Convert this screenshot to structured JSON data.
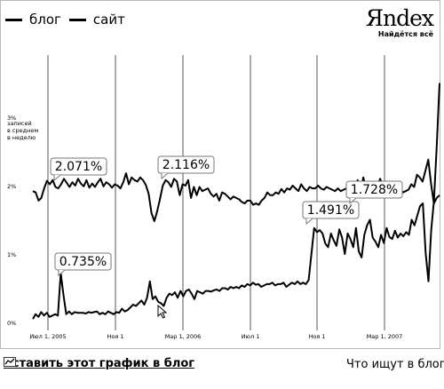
{
  "legend": [
    {
      "name": "блог"
    },
    {
      "name": "сайт"
    }
  ],
  "brand": {
    "logo": "Яndex",
    "tagline": "Найдётся всё"
  },
  "footer": {
    "embed_link": "Вставить этот график в блог",
    "right_text": "Что ищут в блога"
  },
  "chart_data": {
    "type": "line",
    "ylabel": "3% записей в среднем в неделю",
    "y_ticks": [
      "3%",
      "2%",
      "1%",
      "0%"
    ],
    "x_ticks": [
      "Июл 1, 2005",
      "Ноя 1",
      "Мар 1, 2006",
      "Июл 1",
      "Ноя 1",
      "Мар 1, 2007"
    ],
    "x_range": [
      "2005-05",
      "2007-09"
    ],
    "ylim": [
      0,
      3
    ],
    "grid": "vertical lines at x ticks",
    "callouts": [
      "2.071%",
      "2.116%",
      "0.735%",
      "1.491%",
      "1.728%"
    ],
    "series": [
      {
        "name": "блог",
        "values": [
          1.92,
          1.9,
          1.78,
          1.82,
          1.96,
          2.07,
          2.02,
          2.08,
          1.98,
          1.96,
          2.02,
          2.1,
          2.04,
          1.98,
          2.05,
          2.0,
          2.1,
          2.03,
          1.99,
          2.08,
          1.97,
          2.03,
          1.98,
          2.05,
          2.1,
          1.99,
          2.05,
          2.02,
          1.97,
          2.02,
          2.0,
          1.96,
          2.05,
          2.18,
          2.02,
          2.12,
          2.08,
          2.06,
          2.12,
          2.08,
          2.01,
          1.88,
          1.6,
          1.48,
          1.62,
          1.8,
          2.0,
          2.08,
          2.05,
          1.98,
          2.1,
          2.06,
          1.86,
          2.02,
          2.0,
          2.08,
          1.82,
          1.98,
          1.86,
          1.98,
          1.92,
          1.94,
          1.96,
          1.88,
          1.84,
          1.88,
          1.78,
          1.9,
          1.88,
          1.84,
          1.8,
          1.84,
          1.82,
          1.8,
          1.76,
          1.74,
          1.78,
          1.78,
          1.72,
          1.74,
          1.72,
          1.78,
          1.82,
          1.9,
          1.86,
          1.86,
          1.9,
          1.88,
          1.95,
          1.9,
          1.96,
          1.94,
          2.0,
          1.96,
          1.92,
          2.02,
          1.96,
          1.92,
          1.98,
          1.96,
          1.96,
          2.0,
          1.96,
          1.94,
          1.98,
          1.96,
          1.94,
          1.92,
          1.96,
          1.92,
          1.94,
          1.96,
          2.0,
          2.02,
          1.92,
          2.08,
          1.88,
          2.12,
          1.96,
          1.94,
          2.02,
          1.96,
          2.0,
          2.1,
          1.94,
          1.88,
          1.92,
          1.98,
          1.84,
          1.94,
          1.96,
          1.9,
          1.92,
          1.94,
          2.02,
          1.98,
          2.16,
          2.12,
          2.06,
          2.22,
          2.38,
          2.02,
          1.74,
          1.82,
          1.86
        ]
      },
      {
        "name": "сайт",
        "values": [
          0.05,
          0.12,
          0.08,
          0.15,
          0.1,
          0.14,
          0.08,
          0.1,
          0.12,
          0.1,
          0.72,
          0.4,
          0.12,
          0.16,
          0.12,
          0.15,
          0.14,
          0.14,
          0.14,
          0.13,
          0.15,
          0.14,
          0.15,
          0.16,
          0.12,
          0.14,
          0.12,
          0.16,
          0.14,
          0.12,
          0.15,
          0.14,
          0.2,
          0.16,
          0.18,
          0.22,
          0.26,
          0.24,
          0.28,
          0.32,
          0.26,
          0.36,
          0.6,
          0.34,
          0.38,
          0.3,
          0.28,
          0.24,
          0.36,
          0.42,
          0.4,
          0.44,
          0.36,
          0.46,
          0.38,
          0.46,
          0.48,
          0.42,
          0.34,
          0.46,
          0.44,
          0.42,
          0.46,
          0.46,
          0.45,
          0.47,
          0.48,
          0.46,
          0.5,
          0.5,
          0.48,
          0.52,
          0.5,
          0.52,
          0.5,
          0.54,
          0.52,
          0.56,
          0.54,
          0.58,
          0.55,
          0.56,
          0.52,
          0.54,
          0.56,
          0.56,
          0.58,
          0.54,
          0.56,
          0.56,
          0.58,
          0.52,
          0.55,
          0.58,
          0.56,
          0.6,
          0.56,
          0.58,
          0.56,
          0.62,
          1.0,
          1.38,
          1.32,
          1.35,
          1.3,
          1.15,
          1.1,
          1.3,
          1.2,
          1.12,
          1.36,
          1.24,
          1.0,
          1.3,
          1.22,
          1.1,
          1.38,
          1.04,
          0.95,
          1.28,
          1.42,
          1.5,
          1.24,
          1.18,
          1.1,
          1.28,
          1.16,
          1.38,
          1.25,
          1.22,
          1.34,
          1.24,
          1.3,
          1.26,
          1.32,
          1.28,
          1.5,
          1.42,
          1.56,
          1.7,
          1.74,
          1.02,
          0.6,
          1.35,
          1.78,
          2.6,
          3.5
        ]
      }
    ]
  }
}
